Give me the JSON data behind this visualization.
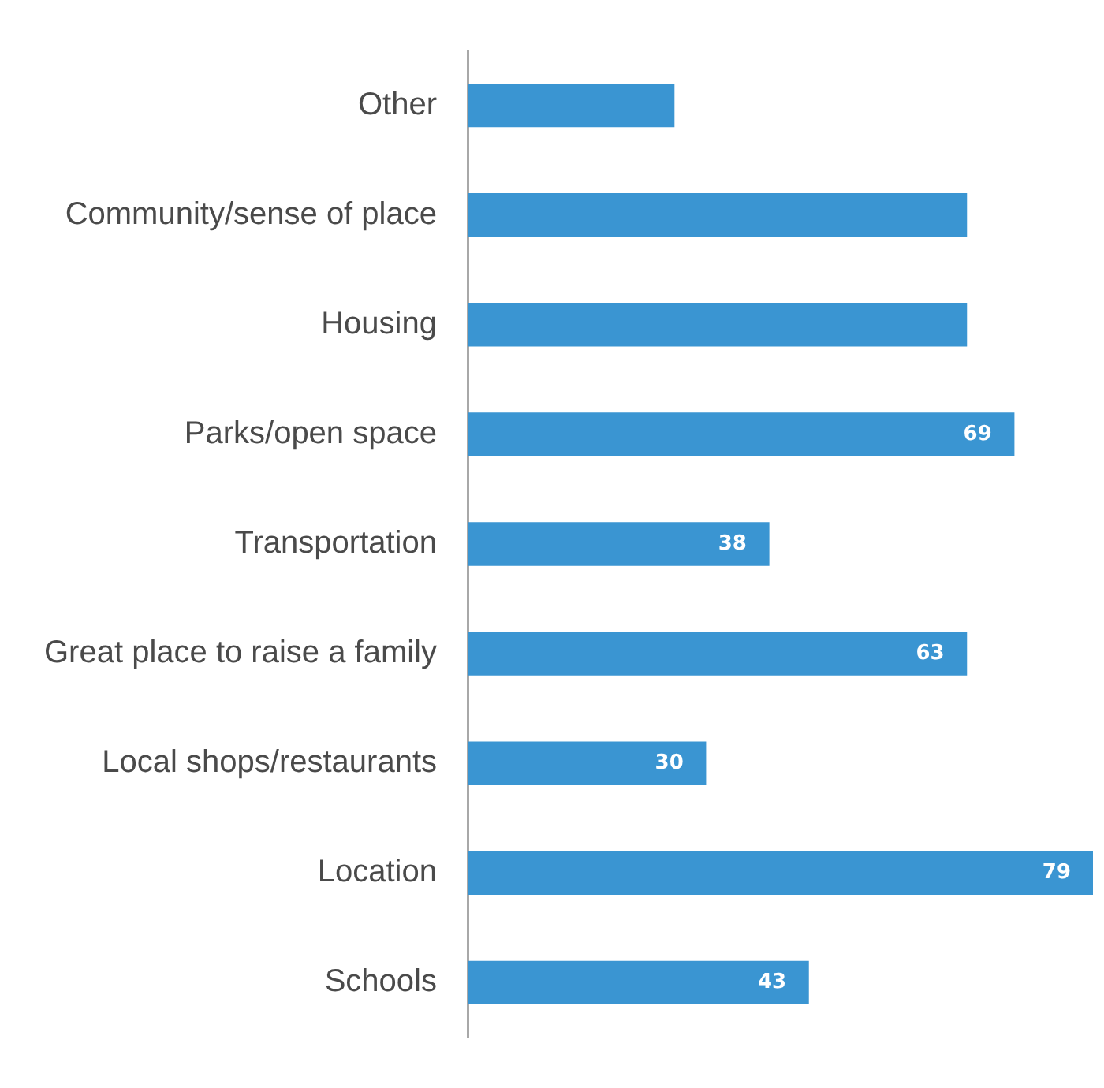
{
  "chart_data": {
    "type": "bar",
    "orientation": "horizontal",
    "categories": [
      "Other",
      "Community/sense of place",
      "Housing",
      "Parks/open space",
      "Transportation",
      "Great place to raise a family",
      "Local shops/restaurants",
      "Location",
      "Schools"
    ],
    "values": [
      26,
      63,
      63,
      69,
      38,
      63,
      30,
      79,
      43
    ],
    "value_labels": [
      null,
      null,
      null,
      "69",
      "38",
      "63",
      "30",
      "79",
      "43"
    ],
    "color": "#3a95d2",
    "xlim": [
      0,
      79
    ],
    "tick_labels": "y",
    "grid": false,
    "legend": false
  }
}
